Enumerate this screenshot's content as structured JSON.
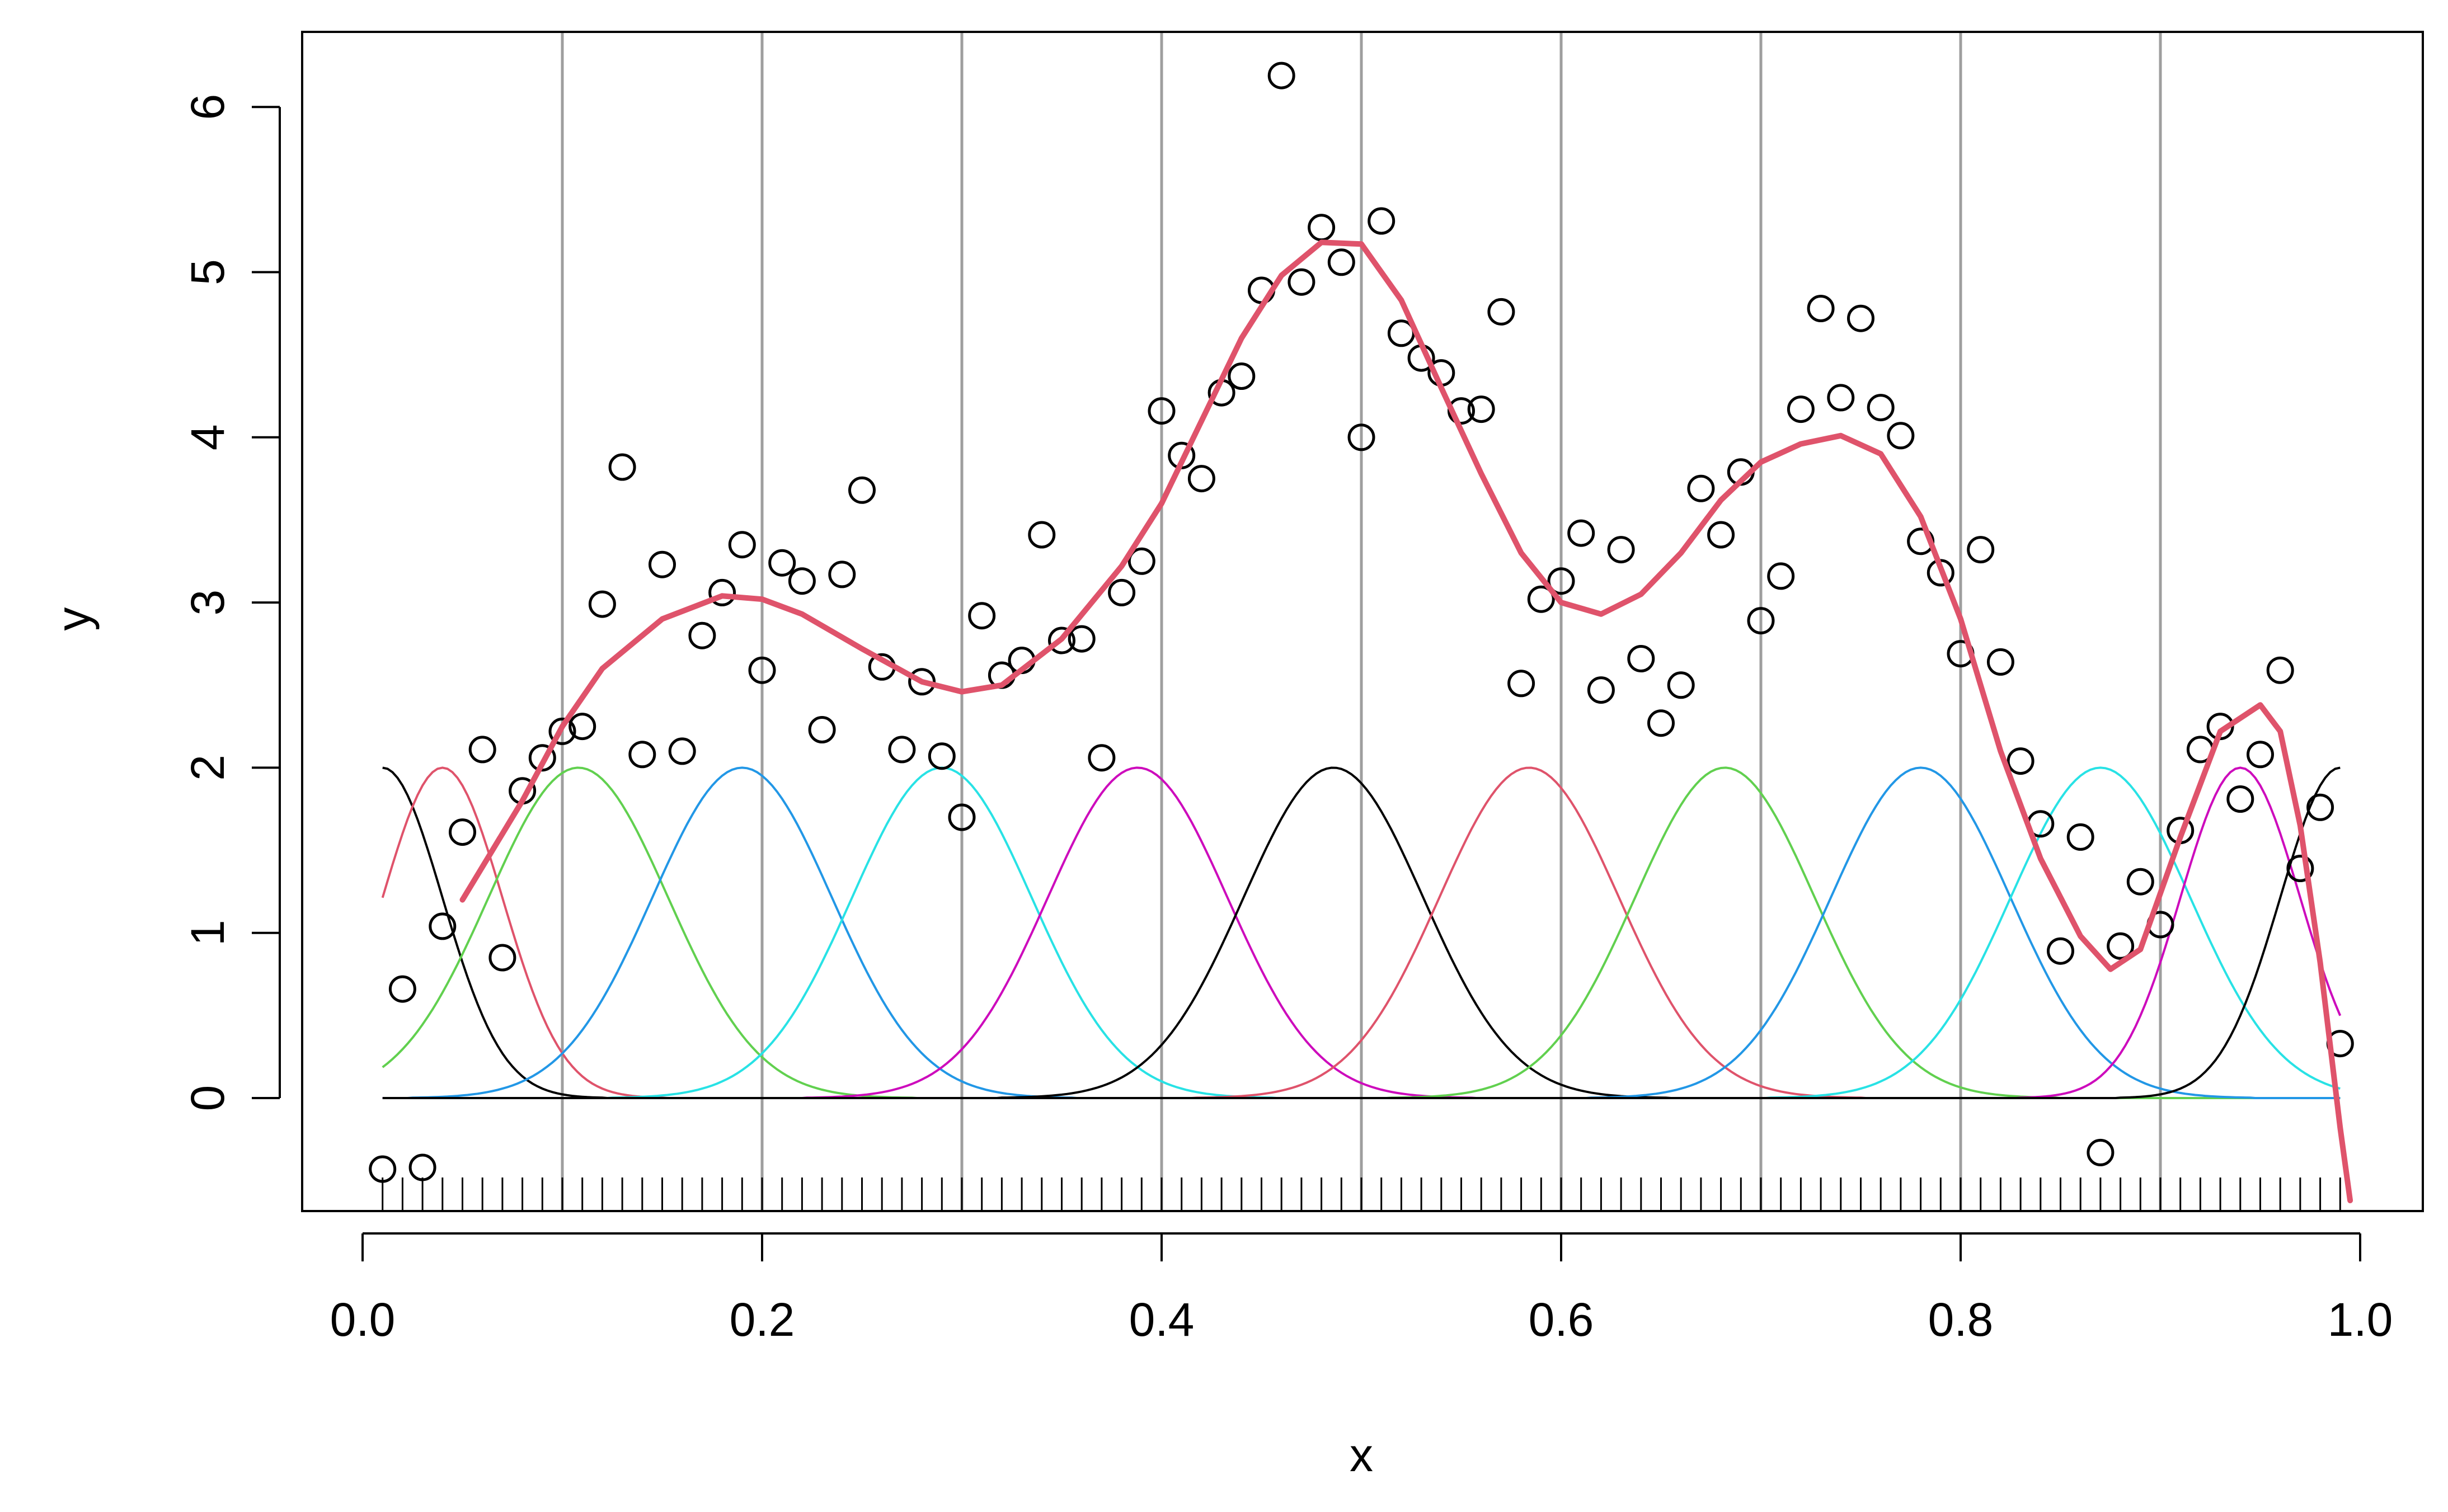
{
  "chart_data": {
    "type": "scatter",
    "title": "",
    "xlabel": "x",
    "ylabel": "y",
    "xlim": [
      0.0,
      1.0
    ],
    "ylim": [
      -0.68,
      6.48
    ],
    "x_ticks": [
      0.0,
      0.2,
      0.4,
      0.6,
      0.8,
      1.0
    ],
    "x_tick_labels": [
      "0.0",
      "0.2",
      "0.4",
      "0.6",
      "0.8",
      "1.0"
    ],
    "y_ticks": [
      0,
      1,
      2,
      3,
      4,
      5,
      6
    ],
    "y_tick_labels": [
      "0",
      "1",
      "2",
      "3",
      "4",
      "5",
      "6"
    ],
    "grid": "vertical lines at knots",
    "legend": "none",
    "knots": [
      0.1,
      0.2,
      0.3,
      0.4,
      0.5,
      0.6,
      0.7,
      0.8,
      0.9
    ],
    "rug_x": [
      0.01,
      0.02,
      0.03,
      0.04,
      0.05,
      0.06,
      0.07,
      0.08,
      0.09,
      0.1,
      0.11,
      0.12,
      0.13,
      0.14,
      0.15,
      0.16,
      0.17,
      0.18,
      0.19,
      0.2,
      0.21,
      0.22,
      0.23,
      0.24,
      0.25,
      0.26,
      0.27,
      0.28,
      0.29,
      0.3,
      0.31,
      0.32,
      0.33,
      0.34,
      0.35,
      0.36,
      0.37,
      0.38,
      0.39,
      0.4,
      0.41,
      0.42,
      0.43,
      0.44,
      0.45,
      0.46,
      0.47,
      0.48,
      0.49,
      0.5,
      0.51,
      0.52,
      0.53,
      0.54,
      0.55,
      0.56,
      0.57,
      0.58,
      0.59,
      0.6,
      0.61,
      0.62,
      0.63,
      0.64,
      0.65,
      0.66,
      0.67,
      0.68,
      0.69,
      0.7,
      0.71,
      0.72,
      0.73,
      0.74,
      0.75,
      0.76,
      0.77,
      0.78,
      0.79,
      0.8,
      0.81,
      0.82,
      0.83,
      0.84,
      0.85,
      0.86,
      0.87,
      0.88,
      0.89,
      0.9,
      0.91,
      0.92,
      0.93,
      0.94,
      0.95,
      0.96,
      0.97,
      0.98,
      0.99
    ],
    "points": {
      "x": [
        0.01,
        0.02,
        0.03,
        0.04,
        0.05,
        0.06,
        0.07,
        0.08,
        0.09,
        0.1,
        0.11,
        0.12,
        0.13,
        0.14,
        0.15,
        0.16,
        0.17,
        0.18,
        0.19,
        0.2,
        0.21,
        0.22,
        0.23,
        0.24,
        0.25,
        0.26,
        0.27,
        0.28,
        0.29,
        0.3,
        0.31,
        0.32,
        0.33,
        0.34,
        0.35,
        0.36,
        0.37,
        0.38,
        0.39,
        0.4,
        0.41,
        0.42,
        0.43,
        0.44,
        0.45,
        0.46,
        0.47,
        0.48,
        0.49,
        0.5,
        0.51,
        0.52,
        0.53,
        0.54,
        0.55,
        0.56,
        0.57,
        0.58,
        0.59,
        0.6,
        0.61,
        0.62,
        0.63,
        0.64,
        0.65,
        0.66,
        0.67,
        0.68,
        0.69,
        0.7,
        0.71,
        0.72,
        0.73,
        0.74,
        0.75,
        0.76,
        0.77,
        0.78,
        0.79,
        0.8,
        0.81,
        0.82,
        0.83,
        0.84,
        0.85,
        0.86,
        0.87,
        0.88,
        0.89,
        0.9,
        0.91,
        0.92,
        0.93,
        0.94,
        0.95,
        0.96,
        0.97,
        0.98,
        0.99
      ],
      "y": [
        -0.43,
        0.66,
        -0.42,
        1.04,
        1.61,
        2.11,
        0.85,
        1.86,
        2.06,
        2.22,
        2.25,
        2.99,
        3.82,
        2.08,
        3.23,
        2.1,
        2.8,
        3.06,
        3.35,
        2.59,
        3.24,
        3.13,
        2.23,
        3.17,
        3.68,
        2.61,
        2.11,
        2.52,
        2.07,
        1.7,
        2.92,
        2.56,
        2.65,
        3.41,
        2.77,
        2.78,
        2.06,
        3.06,
        3.25,
        4.16,
        3.89,
        3.75,
        4.27,
        4.37,
        4.89,
        6.19,
        4.94,
        5.27,
        5.06,
        4.0,
        5.31,
        4.63,
        4.48,
        4.39,
        4.16,
        4.17,
        4.76,
        2.51,
        3.02,
        3.13,
        3.42,
        2.47,
        3.32,
        2.66,
        2.27,
        2.5,
        3.69,
        3.41,
        3.79,
        2.89,
        3.16,
        4.17,
        4.78,
        4.24,
        4.72,
        4.18,
        4.01,
        3.37,
        3.18,
        2.69,
        3.32,
        2.64,
        2.04,
        1.66,
        0.89,
        1.58,
        -0.33,
        0.92,
        1.31,
        1.05,
        1.62,
        2.11,
        2.25,
        1.81,
        2.08,
        2.59,
        1.39,
        1.76,
        0.33
      ]
    },
    "fit": {
      "x": [
        0.05,
        0.08,
        0.1,
        0.12,
        0.15,
        0.18,
        0.2,
        0.22,
        0.25,
        0.28,
        0.3,
        0.32,
        0.35,
        0.38,
        0.4,
        0.42,
        0.44,
        0.46,
        0.48,
        0.5,
        0.52,
        0.54,
        0.56,
        0.58,
        0.6,
        0.62,
        0.64,
        0.66,
        0.68,
        0.7,
        0.72,
        0.74,
        0.76,
        0.78,
        0.8,
        0.82,
        0.84,
        0.86,
        0.875,
        0.89,
        0.91,
        0.93,
        0.95,
        0.96,
        0.97,
        0.98,
        0.99,
        0.995
      ],
      "y": [
        1.2,
        1.8,
        2.25,
        2.6,
        2.9,
        3.04,
        3.02,
        2.93,
        2.72,
        2.52,
        2.46,
        2.5,
        2.78,
        3.22,
        3.6,
        4.1,
        4.6,
        4.98,
        5.18,
        5.17,
        4.83,
        4.3,
        3.78,
        3.3,
        3.0,
        2.93,
        3.05,
        3.3,
        3.62,
        3.85,
        3.96,
        4.01,
        3.9,
        3.52,
        2.9,
        2.1,
        1.45,
        0.98,
        0.78,
        0.9,
        1.58,
        2.22,
        2.38,
        2.22,
        1.65,
        0.82,
        -0.18,
        -0.62
      ]
    },
    "basis": {
      "boundary_left": 0.01,
      "boundary_right": 0.99,
      "peak_height": 2.0,
      "centers": [
        0.01,
        0.04,
        0.108,
        0.19,
        0.29,
        0.388,
        0.486,
        0.584,
        0.682,
        0.78,
        0.87,
        0.94,
        0.99
      ],
      "colors": [
        "#000000",
        "#DF536B",
        "#61D04F",
        "#2297E6",
        "#28E2E5",
        "#CD0BBC",
        "#000000",
        "#DF536B",
        "#61D04F",
        "#2297E6",
        "#28E2E5",
        "#CD0BBC",
        "#000000"
      ]
    },
    "colors": {
      "fit": "#DF536B",
      "points": "#000000",
      "grid": "#9E9E9E",
      "rug": "#000000"
    }
  }
}
